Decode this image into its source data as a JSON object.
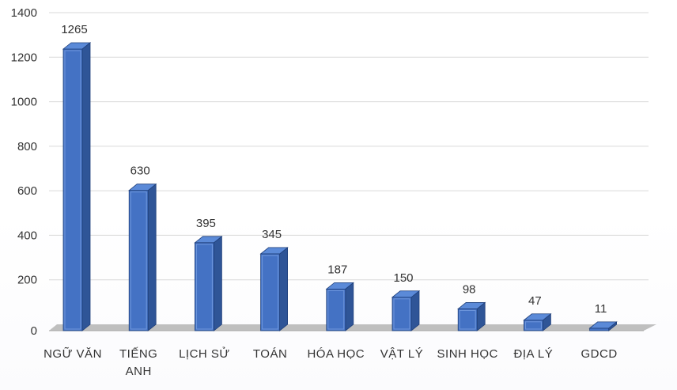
{
  "chart_data": {
    "type": "bar",
    "title": "",
    "xlabel": "",
    "ylabel": "",
    "ylim": [
      0,
      1400
    ],
    "yticks": [
      0,
      200,
      400,
      600,
      800,
      1000,
      1200,
      1400
    ],
    "grid": true,
    "bar_style": "3d-column",
    "colors": {
      "bar_front": "#4472C4",
      "bar_side": "#2F5597",
      "bar_top": "#5B8AD8",
      "bar_edge": "#1F3F7A",
      "floor": "#BFBFBF",
      "gridline": "#D9D9D9",
      "text": "#333333"
    },
    "categories": [
      [
        "NGỮ VĂN"
      ],
      [
        "TIẾNG",
        "ANH"
      ],
      [
        "LỊCH SỬ"
      ],
      [
        "TOÁN"
      ],
      [
        "HÓA HỌC"
      ],
      [
        "VẬT LÝ"
      ],
      [
        "SINH HỌC"
      ],
      [
        "ĐỊA LÝ"
      ],
      [
        "GDCD"
      ]
    ],
    "values": [
      1265,
      630,
      395,
      345,
      187,
      150,
      98,
      47,
      11
    ],
    "data_labels": [
      "1265",
      "630",
      "395",
      "345",
      "187",
      "150",
      "98",
      "47",
      "11"
    ]
  }
}
